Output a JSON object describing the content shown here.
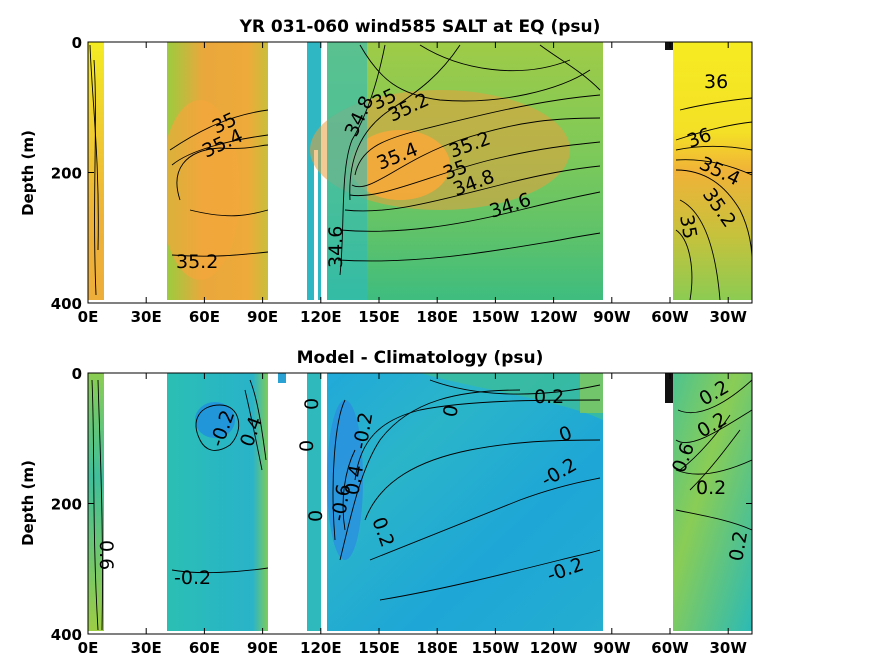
{
  "chart_data": [
    {
      "type": "contour",
      "title": "YR 031-060 wind585 SALT at EQ (psu)",
      "ylabel": "Depth (m)",
      "xlabel": "",
      "x_ticks": [
        "0E",
        "30E",
        "60E",
        "90E",
        "120E",
        "150E",
        "180E",
        "150W",
        "120W",
        "90W",
        "60W",
        "30W"
      ],
      "y_ticks": [
        "0",
        "200",
        "400"
      ],
      "ylim": [
        400,
        0
      ],
      "contour_labels": [
        "35.2",
        "35.4",
        "35",
        "34.8",
        "35",
        "35.2",
        "35.4",
        "35.2",
        "35",
        "34.8",
        "34.6",
        "34.6",
        "35.2",
        "36",
        "36",
        "35.4",
        "35.2",
        "35"
      ],
      "colors": {
        "land": "#ffffff",
        "fresh": "#1fb6c8",
        "mid": "#8ccf5a",
        "salty": "#f3a73a",
        "saltiest": "#f5f020"
      }
    },
    {
      "type": "contour",
      "title": "Model - Climatology (psu)",
      "ylabel": "Depth (m)",
      "xlabel": "",
      "x_ticks": [
        "0E",
        "30E",
        "60E",
        "90E",
        "120E",
        "150E",
        "180E",
        "150W",
        "120W",
        "90W",
        "60W",
        "30W"
      ],
      "y_ticks": [
        "0",
        "200",
        "400"
      ],
      "ylim": [
        400,
        0
      ],
      "contour_labels": [
        "-0.2",
        "0.4",
        "0",
        "0",
        "0",
        "-0.2",
        "-0.6",
        "0.4",
        "0.2",
        "0",
        "0.2",
        "0",
        "-0.2",
        "-0.2",
        "0.2",
        "0.6",
        "0.2",
        "0.2",
        "-0.2",
        "0.6"
      ],
      "colors": {
        "negative": "#1f9fd8",
        "zero": "#1fbfb8",
        "positive": "#a8d048"
      }
    }
  ]
}
